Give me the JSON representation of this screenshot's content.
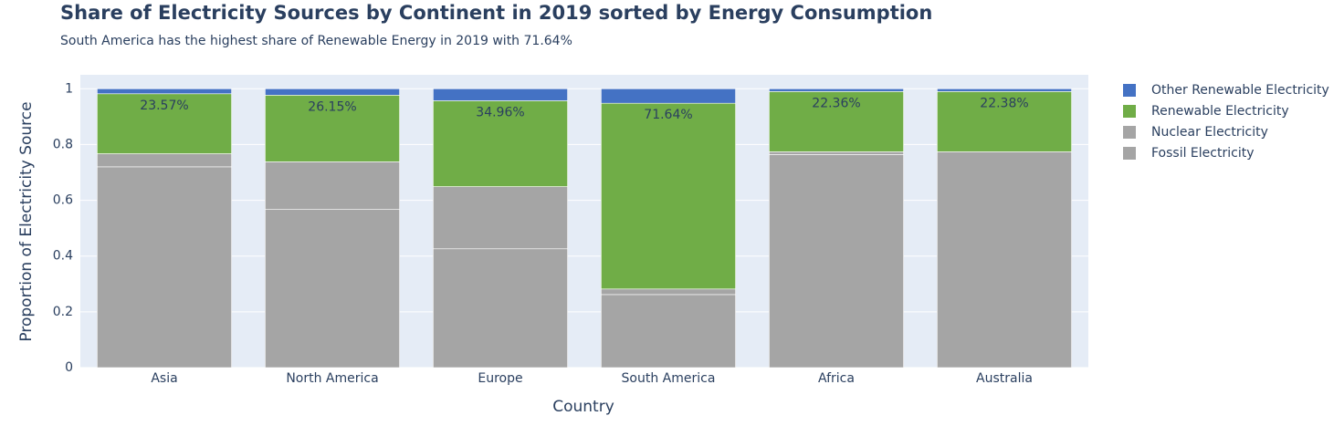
{
  "chart_data": {
    "type": "stacked_bar",
    "title": "Share of Electricity Sources by Continent in 2019 sorted by Energy Consumption",
    "subtitle": "South America has the highest share of Renewable Energy in 2019 with 71.64%",
    "x_label": "Country",
    "y_label": "Proportion of Electricity Source",
    "categories": [
      "Asia",
      "North America",
      "Europe",
      "South America",
      "Africa",
      "Australia"
    ],
    "series": [
      {
        "name": "Fossil Electricity",
        "color": "#a5a5a5",
        "values": [
          0.72,
          0.567,
          0.426,
          0.262,
          0.764,
          0.774
        ]
      },
      {
        "name": "Nuclear Electricity",
        "color": "#a5a5a5",
        "values": [
          0.047,
          0.171,
          0.223,
          0.02,
          0.01,
          0.0
        ]
      },
      {
        "name": "Renewable Electricity",
        "color": "#70ad47",
        "values": [
          0.215,
          0.239,
          0.308,
          0.666,
          0.216,
          0.216
        ]
      },
      {
        "name": "Other Renewable Electricity",
        "color": "#4472c4",
        "values": [
          0.018,
          0.023,
          0.043,
          0.052,
          0.01,
          0.01
        ]
      }
    ],
    "annotations": [
      "23.57%",
      "26.15%",
      "34.96%",
      "71.64%",
      "22.36%",
      "22.38%"
    ],
    "ylim": [
      0,
      1.05
    ],
    "yticks": [
      0,
      0.2,
      0.4,
      0.6,
      0.8,
      1
    ],
    "grid": true
  }
}
